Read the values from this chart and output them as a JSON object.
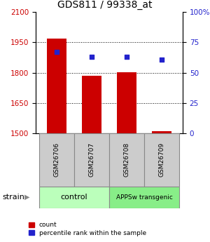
{
  "title": "GDS811 / 99338_at",
  "samples": [
    "GSM26706",
    "GSM26707",
    "GSM26708",
    "GSM26709"
  ],
  "counts": [
    1970,
    1785,
    1800,
    1510
  ],
  "percentiles": [
    67,
    63,
    63,
    61
  ],
  "ylim_left": [
    1500,
    2100
  ],
  "ylim_right": [
    0,
    100
  ],
  "yticks_left": [
    1500,
    1650,
    1800,
    1950,
    2100
  ],
  "yticks_right": [
    0,
    25,
    50,
    75,
    100
  ],
  "ytick_labels_right": [
    "0",
    "25",
    "50",
    "75",
    "100%"
  ],
  "bar_color": "#cc0000",
  "dot_color": "#2222cc",
  "grid_color": "#000000",
  "group_labels": [
    "control",
    "APPSw transgenic"
  ],
  "group_colors": [
    "#bbffbb",
    "#88ee88"
  ],
  "group_sample_counts": [
    2,
    2
  ],
  "xlabel_group": "strain",
  "bar_width": 0.55,
  "tick_label_color_left": "#cc0000",
  "tick_label_color_right": "#2222cc",
  "sample_bg_color": "#cccccc",
  "legend_labels": [
    "count",
    "percentile rank within the sample"
  ]
}
